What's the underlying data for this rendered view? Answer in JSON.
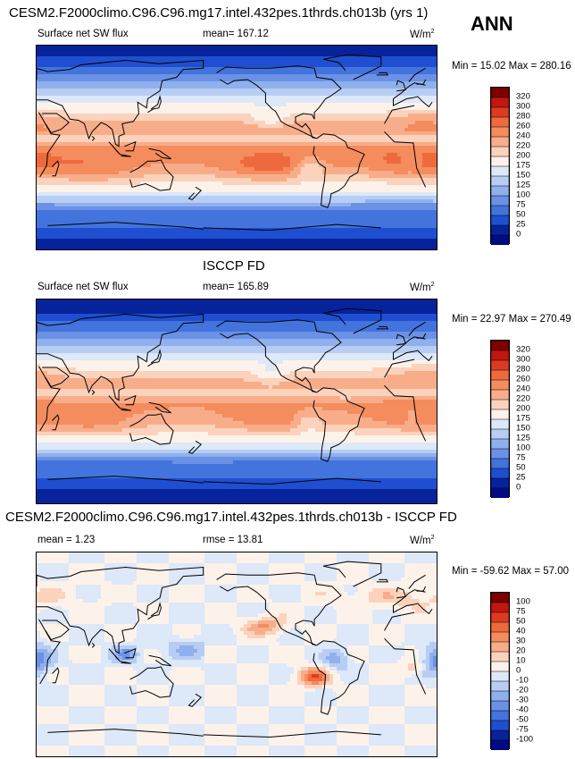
{
  "header": {
    "title": "CESM2.F2000climo.C96.C96.mg17.intel.432pes.1thrds.ch013b (yrs 1)",
    "season": "ANN"
  },
  "panels": [
    {
      "title": "",
      "left": "Surface net SW flux",
      "middle": "mean= 167.12",
      "units_base": "W/m",
      "units_sup": "2",
      "minmax": "Min =  15.02 Max = 280.16",
      "levels": [
        "320",
        "300",
        "280",
        "260",
        "240",
        "220",
        "200",
        "175",
        "150",
        "125",
        "100",
        "75",
        "50",
        "25",
        "0"
      ]
    },
    {
      "title": "ISCCP FD",
      "left": "Surface net SW flux",
      "middle": "mean= 165.89",
      "units_base": "W/m",
      "units_sup": "2",
      "minmax": "Min =  22.97 Max = 270.49",
      "levels": [
        "320",
        "300",
        "280",
        "260",
        "240",
        "220",
        "200",
        "175",
        "150",
        "125",
        "100",
        "75",
        "50",
        "25",
        "0"
      ]
    },
    {
      "title": "CESM2.F2000climo.C96.C96.mg17.intel.432pes.1thrds.ch013b - ISCCP FD",
      "left": "mean =   1.23",
      "middle": "rmse =  13.81",
      "units_base": "W/m",
      "units_sup": "2",
      "minmax": "Min = -59.62 Max =  57.00",
      "levels": [
        "100",
        "75",
        "50",
        "40",
        "30",
        "20",
        "10",
        "0",
        "-10",
        "-20",
        "-30",
        "-40",
        "-50",
        "-75",
        "-100"
      ]
    }
  ],
  "colors": {
    "colorbar_top_to_bottom": [
      "#7f0000",
      "#c0180f",
      "#dc3b21",
      "#ee6a3c",
      "#f48c5e",
      "#f8ad8a",
      "#fbd2bc",
      "#fdf2ea",
      "#dde8f8",
      "#b8cdf3",
      "#8fb0ec",
      "#6a91e6",
      "#4373dc",
      "#1f4fd0",
      "#06239c",
      "#000c82"
    ],
    "border": "#000000"
  }
}
